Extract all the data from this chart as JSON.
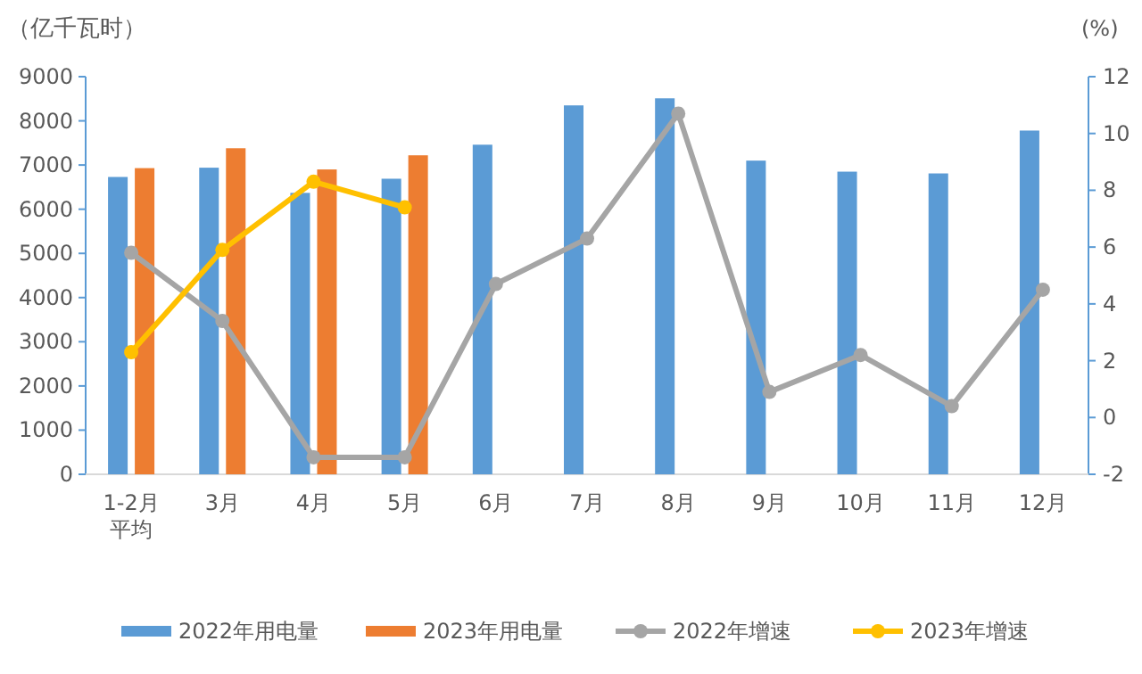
{
  "chart_data": {
    "type": "bar",
    "ylabel": "（亿千瓦时）",
    "y2label": "(%)",
    "categories": [
      "1-2月平均",
      "3月",
      "4月",
      "5月",
      "6月",
      "7月",
      "8月",
      "9月",
      "10月",
      "11月",
      "12月"
    ],
    "series": [
      {
        "name": "2022年用电量",
        "color": "#5b9bd5",
        "values": [
          6730,
          6940,
          6370,
          6690,
          7460,
          8350,
          8510,
          7100,
          6850,
          6810,
          7780
        ]
      },
      {
        "name": "2023年用电量",
        "color": "#ed7d31",
        "values": [
          6930,
          7380,
          6900,
          7220,
          null,
          null,
          null,
          null,
          null,
          null,
          null
        ]
      },
      {
        "name": "2022年增速",
        "type": "line",
        "axis": "y2",
        "color": "#a5a5a5",
        "marker": "circle",
        "values": [
          5.8,
          3.4,
          -1.4,
          -1.4,
          4.7,
          6.3,
          10.7,
          0.9,
          2.2,
          0.4,
          4.5
        ]
      },
      {
        "name": "2023年增速",
        "type": "line",
        "axis": "y2",
        "color": "#ffc000",
        "marker": "circle",
        "values": [
          2.3,
          5.9,
          8.3,
          7.4,
          null,
          null,
          null,
          null,
          null,
          null,
          null
        ]
      }
    ],
    "ylim": [
      0,
      9000
    ],
    "yticks": [
      0,
      1000,
      2000,
      3000,
      4000,
      5000,
      6000,
      7000,
      8000,
      9000
    ],
    "y2lim": [
      -2,
      12
    ],
    "y2ticks": [
      -2,
      0,
      2,
      4,
      6,
      8,
      10,
      12
    ],
    "grid": false,
    "legend": "bottom"
  }
}
